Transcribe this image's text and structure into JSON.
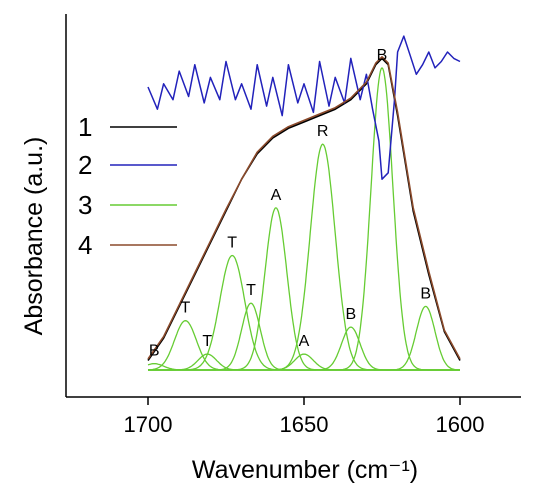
{
  "chart_data": {
    "type": "line",
    "title": "",
    "xlabel": "Wavenumber (cm⁻¹)",
    "ylabel": "Absorbance (a.u.)",
    "xlim": [
      1725,
      1583
    ],
    "ylim": [
      0,
      1
    ],
    "x_reversed": true,
    "x_ticks": [
      1700,
      1650,
      1600
    ],
    "grid": false,
    "legend_position": "left",
    "legend": [
      {
        "label": "1",
        "color": "#000000"
      },
      {
        "label": "2",
        "color": "#2222bb"
      },
      {
        "label": "3",
        "color": "#66cc33"
      },
      {
        "label": "4",
        "color": "#8b4a2b"
      }
    ],
    "components": [
      {
        "label": "B",
        "center": 1698,
        "height": 0.02,
        "width": 3
      },
      {
        "label": "T",
        "center": 1688,
        "height": 0.155,
        "width": 3.5
      },
      {
        "label": "T",
        "center": 1681,
        "height": 0.05,
        "width": 3
      },
      {
        "label": "T",
        "center": 1673,
        "height": 0.36,
        "width": 4
      },
      {
        "label": "T",
        "center": 1667,
        "height": 0.21,
        "width": 3
      },
      {
        "label": "A",
        "center": 1659,
        "height": 0.51,
        "width": 3.5
      },
      {
        "label": "A",
        "center": 1650,
        "height": 0.05,
        "width": 3
      },
      {
        "label": "R",
        "center": 1644,
        "height": 0.71,
        "width": 4
      },
      {
        "label": "B",
        "center": 1635,
        "height": 0.135,
        "width": 3
      },
      {
        "label": "B",
        "center": 1625,
        "height": 0.95,
        "width": 3.5
      },
      {
        "label": "B",
        "center": 1611,
        "height": 0.2,
        "width": 3
      }
    ],
    "series": [
      {
        "name": "1",
        "x": [
          1700,
          1695,
          1690,
          1685,
          1680,
          1675,
          1670,
          1665,
          1660,
          1655,
          1650,
          1645,
          1640,
          1635,
          1630,
          1627,
          1625,
          1623,
          1620,
          1615,
          1610,
          1605,
          1600
        ],
        "y": [
          0.03,
          0.1,
          0.2,
          0.3,
          0.4,
          0.5,
          0.6,
          0.68,
          0.73,
          0.76,
          0.78,
          0.8,
          0.82,
          0.85,
          0.9,
          0.96,
          0.98,
          0.96,
          0.8,
          0.5,
          0.3,
          0.12,
          0.03
        ]
      },
      {
        "name": "2",
        "x": [
          1700,
          1697,
          1695,
          1692,
          1690,
          1687,
          1685,
          1682,
          1680,
          1677,
          1675,
          1672,
          1670,
          1667,
          1665,
          1662,
          1660,
          1657,
          1655,
          1652,
          1650,
          1647,
          1645,
          1642,
          1640,
          1637,
          1635,
          1632,
          1630,
          1628,
          1626,
          1625,
          1623,
          1621,
          1620,
          1618,
          1616,
          1614,
          1612,
          1610,
          1608,
          1606,
          1604,
          1602,
          1600
        ],
        "y": [
          0.89,
          0.82,
          0.9,
          0.85,
          0.94,
          0.86,
          0.96,
          0.84,
          0.92,
          0.85,
          0.97,
          0.85,
          0.9,
          0.82,
          0.96,
          0.83,
          0.92,
          0.8,
          0.96,
          0.84,
          0.9,
          0.81,
          0.97,
          0.83,
          0.92,
          0.84,
          0.98,
          0.85,
          0.93,
          0.82,
          0.72,
          0.6,
          0.62,
          0.85,
          1.0,
          1.05,
          0.99,
          0.93,
          0.96,
          1.0,
          0.95,
          0.97,
          1.0,
          0.98,
          0.97
        ]
      },
      {
        "name": "4",
        "x": [
          1700,
          1695,
          1690,
          1685,
          1680,
          1675,
          1670,
          1665,
          1660,
          1655,
          1650,
          1645,
          1640,
          1635,
          1630,
          1627,
          1625,
          1623,
          1620,
          1615,
          1610,
          1605,
          1600
        ],
        "y": [
          0.035,
          0.105,
          0.205,
          0.305,
          0.405,
          0.505,
          0.6,
          0.685,
          0.735,
          0.765,
          0.785,
          0.805,
          0.825,
          0.855,
          0.905,
          0.965,
          0.985,
          0.965,
          0.81,
          0.51,
          0.31,
          0.125,
          0.035
        ]
      }
    ]
  }
}
